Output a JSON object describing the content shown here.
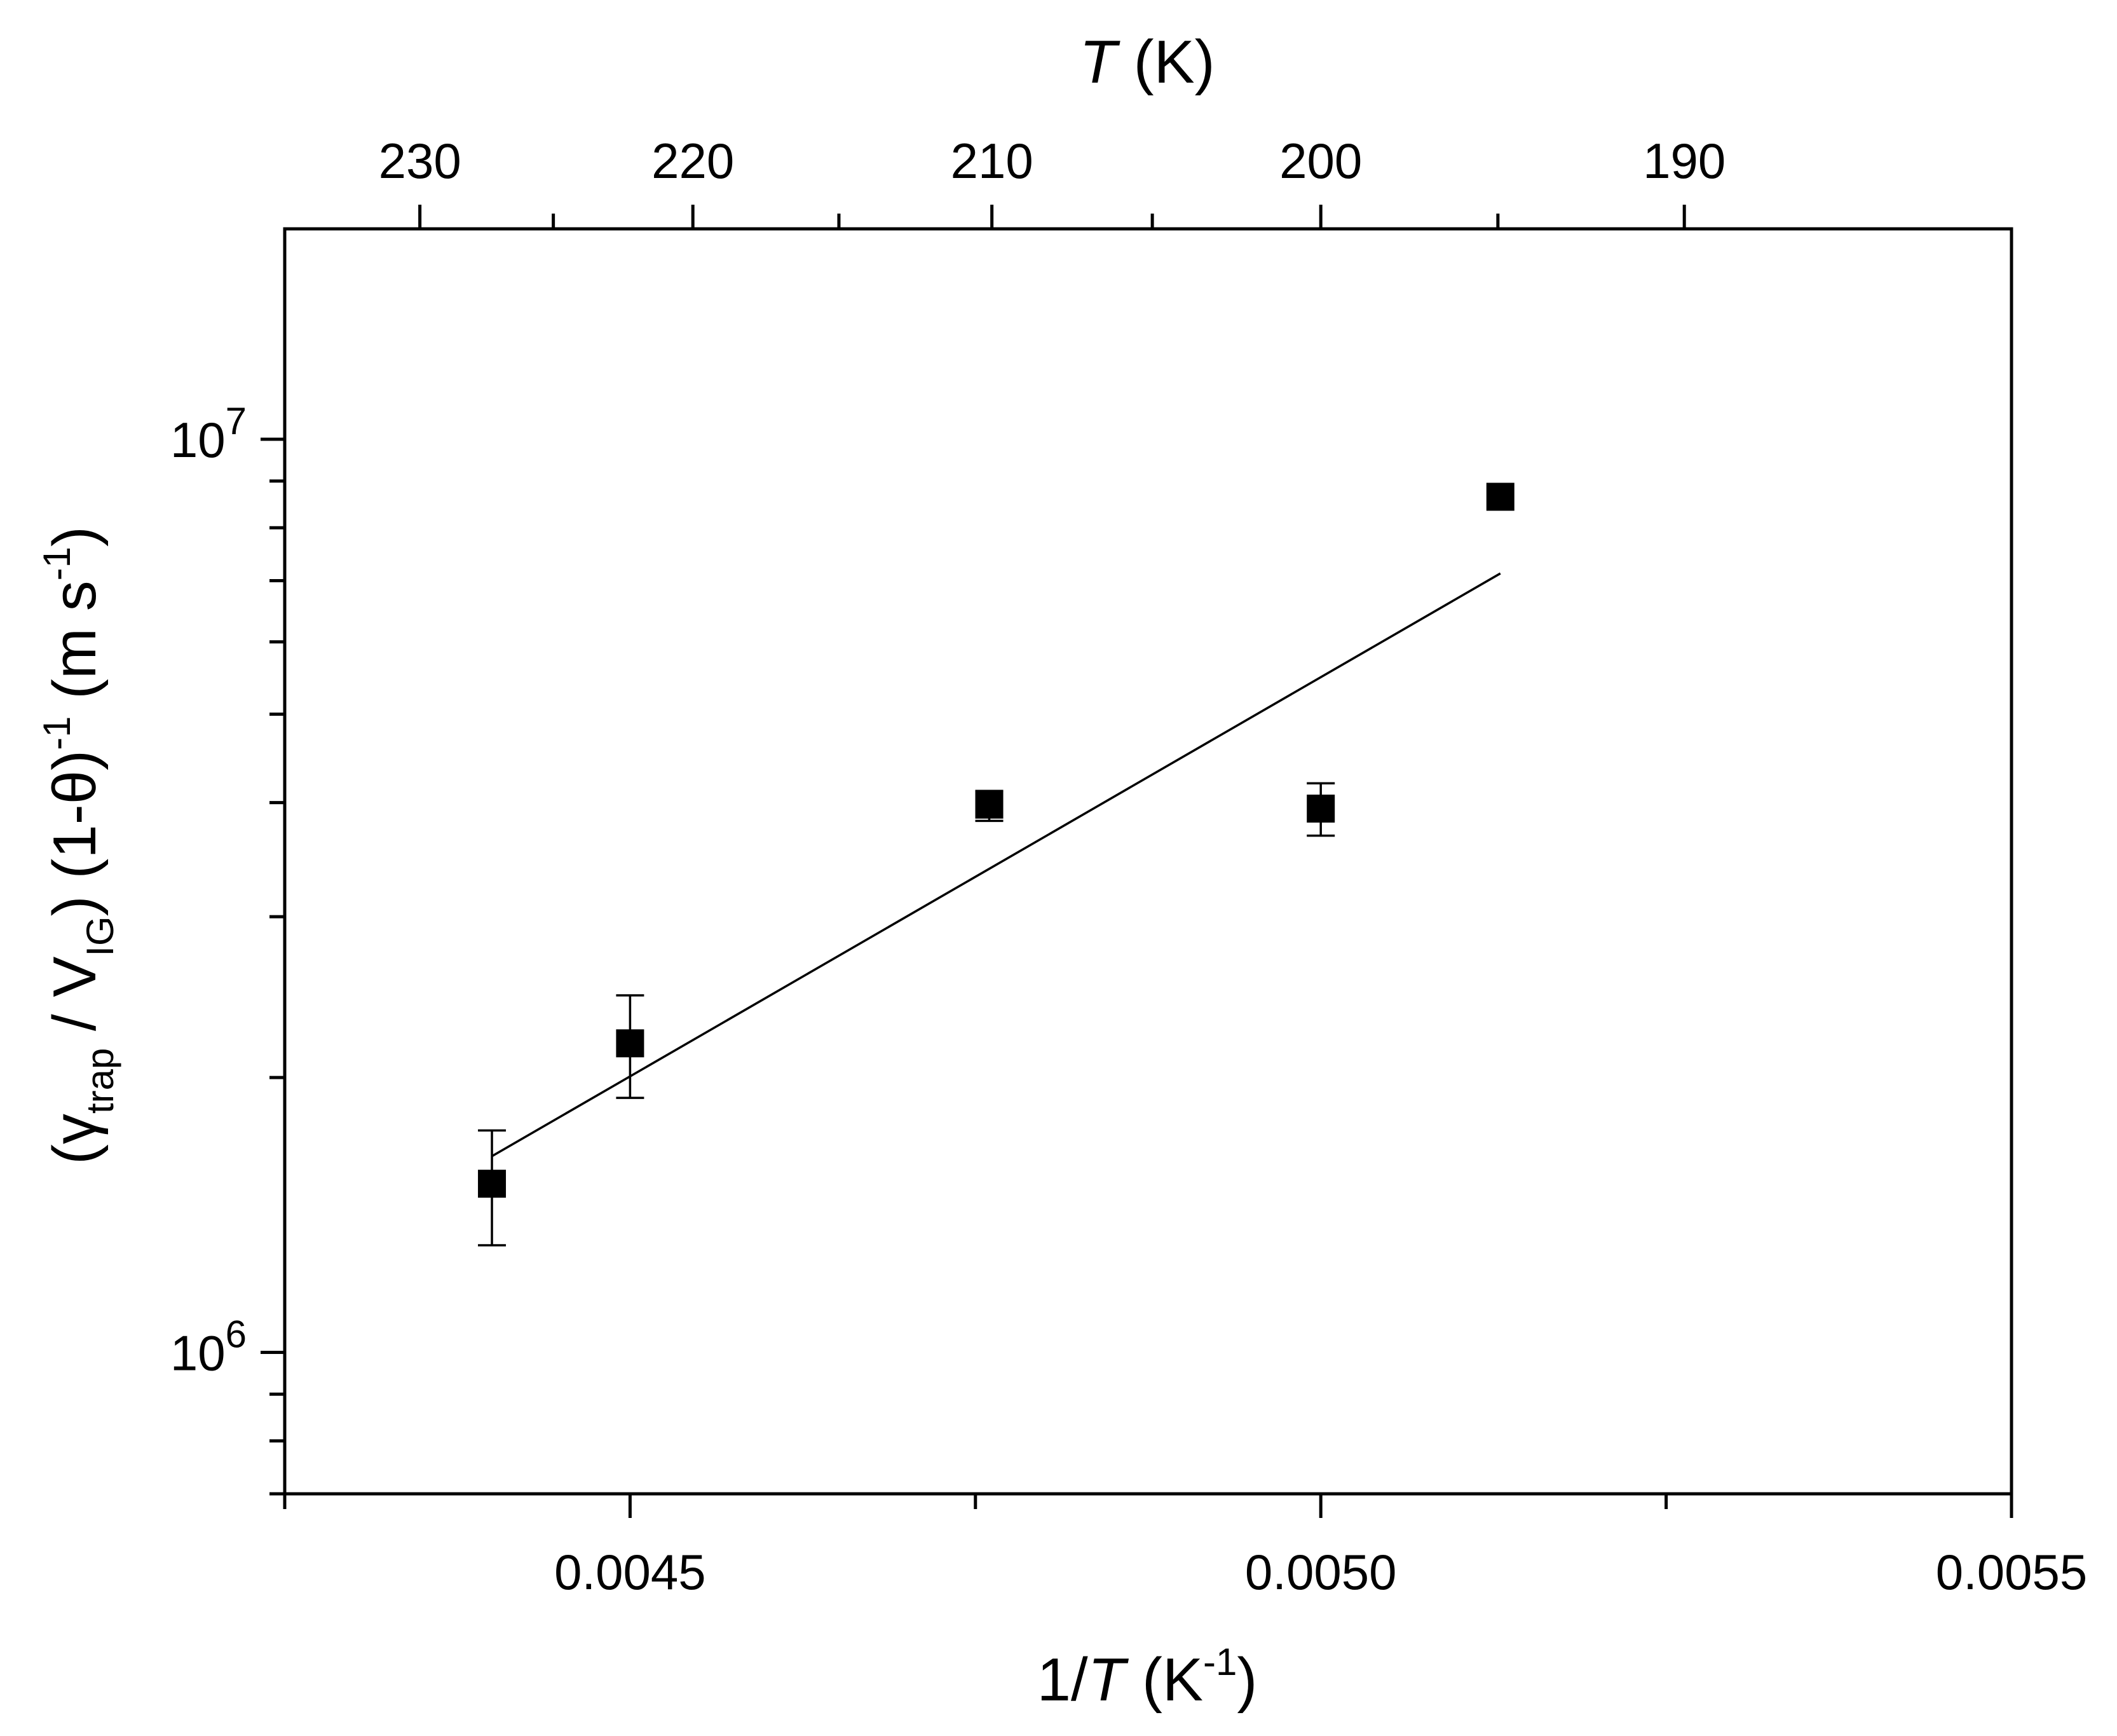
{
  "chart_data": {
    "type": "scatter",
    "title": "",
    "x_axis_bottom": {
      "label_prefix": "1/",
      "label_var": "T",
      "label_open": " (K",
      "label_sup": "-1",
      "label_close": ")",
      "range": [
        0.00425,
        0.0055
      ],
      "scale": "linear",
      "major_ticks": [
        0.0045,
        0.005,
        0.0055
      ],
      "tick_labels": [
        "0.0045",
        "0.0050",
        "0.0055"
      ],
      "minor_ticks": [
        0.00425,
        0.00475,
        0.00525
      ]
    },
    "x_axis_top": {
      "label_var": "T",
      "label_rest": " (K)",
      "unit_relation": "T = 1/x",
      "major_ticks": [
        230,
        220,
        210,
        200,
        190
      ],
      "tick_labels": [
        "230",
        "220",
        "210",
        "200",
        "190"
      ],
      "minor_ticks": [
        225,
        215,
        205,
        195
      ]
    },
    "y_axis": {
      "label_gamma": "γ",
      "label_sub_trap": "trap",
      "label_mid": " / V",
      "label_sub_ig": "IG",
      "label_paren": ") (1-θ)",
      "label_sup1": "-1",
      "label_units": " (m s",
      "label_sup2": "-1",
      "label_end": ")",
      "scale": "log",
      "range": [
        700000,
        17000000
      ],
      "major_ticks": [
        1000000,
        10000000
      ],
      "tick_label_base": "10",
      "tick_label_exponents": [
        "6",
        "7"
      ],
      "minor_ticks": [
        700000,
        800000,
        900000,
        2000000,
        3000000,
        4000000,
        5000000,
        6000000,
        7000000,
        8000000,
        9000000
      ]
    },
    "grid": false,
    "legend": "none",
    "series": [
      {
        "kind": "points",
        "marker": "square",
        "color": "#000000",
        "points": [
          {
            "x": 0.0044,
            "y": 1530000,
            "err_low": 1310000,
            "err_high": 1750000
          },
          {
            "x": 0.0045,
            "y": 2180000,
            "err_low": 1900000,
            "err_high": 2460000
          },
          {
            "x": 0.00476,
            "y": 3980000,
            "err_low": 3820000,
            "err_high": 4120000
          },
          {
            "x": 0.005,
            "y": 3940000,
            "err_low": 3680000,
            "err_high": 4200000
          },
          {
            "x": 0.00513,
            "y": 8650000,
            "err_low": 8650000,
            "err_high": 8650000
          }
        ]
      },
      {
        "kind": "fit-line",
        "color": "#000000",
        "points": [
          {
            "x": 0.0044,
            "y": 1640000
          },
          {
            "x": 0.00513,
            "y": 7130000
          }
        ]
      }
    ]
  }
}
